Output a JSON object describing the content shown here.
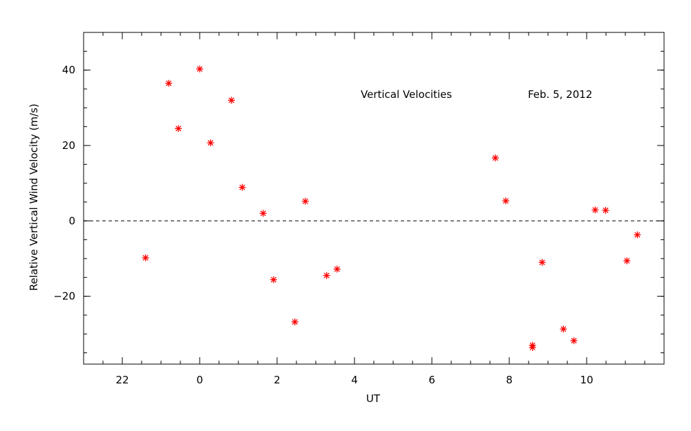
{
  "chart_data": {
    "type": "scatter",
    "title": "",
    "xlabel": "UT",
    "ylabel": "Relative Vertical Wind Velocity (m/s)",
    "annotations": [
      "Vertical Velocities",
      "Feb. 5, 2012"
    ],
    "xlim": [
      21,
      12
    ],
    "x_display_offset": 24,
    "ylim": [
      -38,
      50
    ],
    "x_ticks": [
      {
        "value": 22,
        "label": "22"
      },
      {
        "value": 24,
        "label": "0"
      },
      {
        "value": 26,
        "label": "2"
      },
      {
        "value": 28,
        "label": "4"
      },
      {
        "value": 30,
        "label": "6"
      },
      {
        "value": 32,
        "label": "8"
      },
      {
        "value": 34,
        "label": "10"
      }
    ],
    "y_ticks": [
      {
        "value": -20,
        "label": "−20"
      },
      {
        "value": 0,
        "label": "0"
      },
      {
        "value": 20,
        "label": "20"
      },
      {
        "value": 40,
        "label": "40"
      }
    ],
    "reference_line": {
      "y": 0,
      "style": "dashed"
    },
    "grid": false,
    "marker_color": "#ff0000",
    "marker": "asterisk",
    "points": [
      {
        "x": 22.6,
        "y": -9.8
      },
      {
        "x": 23.2,
        "y": 36.5
      },
      {
        "x": 23.45,
        "y": 24.5
      },
      {
        "x": 24.0,
        "y": 40.3
      },
      {
        "x": 24.28,
        "y": 20.7
      },
      {
        "x": 24.82,
        "y": 32.0
      },
      {
        "x": 25.1,
        "y": 8.9
      },
      {
        "x": 25.64,
        "y": 2.0
      },
      {
        "x": 25.91,
        "y": -15.6
      },
      {
        "x": 26.46,
        "y": -26.8
      },
      {
        "x": 26.73,
        "y": 5.2
      },
      {
        "x": 27.28,
        "y": -14.5
      },
      {
        "x": 27.55,
        "y": -12.8
      },
      {
        "x": 31.64,
        "y": 16.7
      },
      {
        "x": 31.91,
        "y": 5.3
      },
      {
        "x": 32.6,
        "y": -33.0
      },
      {
        "x": 32.6,
        "y": -33.6
      },
      {
        "x": 32.85,
        "y": -11.0
      },
      {
        "x": 33.4,
        "y": -28.7
      },
      {
        "x": 33.67,
        "y": -31.8
      },
      {
        "x": 34.22,
        "y": 2.9
      },
      {
        "x": 34.49,
        "y": 2.8
      },
      {
        "x": 35.04,
        "y": -10.6
      },
      {
        "x": 35.31,
        "y": -3.7
      }
    ]
  }
}
